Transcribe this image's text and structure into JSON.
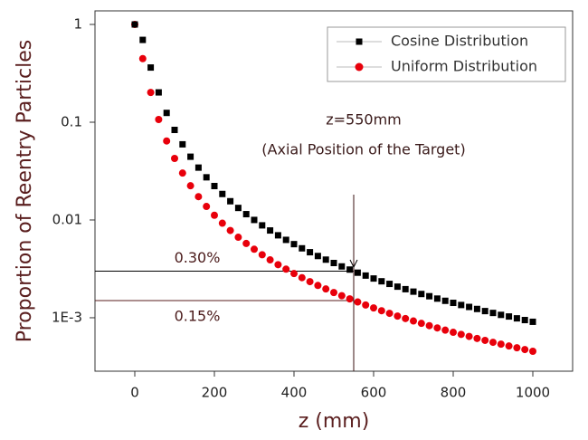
{
  "chart_data": {
    "type": "scatter",
    "x_label": "z (mm)",
    "y_label": "Proportion of Reentry Particles",
    "log_y": true,
    "legend": "upper right",
    "x": [
      0,
      20,
      40,
      60,
      80,
      100,
      120,
      140,
      160,
      180,
      200,
      220,
      240,
      260,
      280,
      300,
      320,
      340,
      360,
      380,
      400,
      420,
      440,
      460,
      480,
      500,
      520,
      540,
      560,
      580,
      600,
      620,
      640,
      660,
      680,
      700,
      720,
      740,
      760,
      780,
      800,
      820,
      840,
      860,
      880,
      900,
      920,
      940,
      960,
      980,
      1000
    ],
    "series": [
      {
        "name": "Cosine Distribution",
        "color": "#000000",
        "marker": "square",
        "values": [
          1,
          0.695,
          0.3625,
          0.2018,
          0.1245,
          0.0834,
          0.0594,
          0.04437,
          0.03433,
          0.02732,
          0.02224,
          0.01845,
          0.01555,
          0.01328,
          0.01147,
          0.01001,
          0.00881,
          0.00781,
          0.00697,
          0.00626,
          0.00566,
          0.00513,
          0.00468,
          0.00428,
          0.00393,
          0.00363,
          0.00335,
          0.00311,
          0.00289,
          0.0027,
          0.00252,
          0.00236,
          0.00222,
          0.00208,
          0.00196,
          0.00185,
          0.00175,
          0.00166,
          0.00157,
          0.00149,
          0.00142,
          0.00135,
          0.00129,
          0.00123,
          0.00117,
          0.00112,
          0.00107,
          0.00103,
          0.000986,
          0.000947,
          0.000909
        ]
      },
      {
        "name": "Uniform Distribution",
        "color": "#e8000b",
        "marker": "circle",
        "values": [
          1,
          0.447,
          0.2016,
          0.1066,
          0.0643,
          0.0426,
          0.0302,
          0.0224,
          0.01732,
          0.01375,
          0.01118,
          0.00927,
          0.00781,
          0.00666,
          0.00575,
          0.00502,
          0.00441,
          0.00391,
          0.00349,
          0.00314,
          0.00283,
          0.00257,
          0.00234,
          0.00214,
          0.00197,
          0.00181,
          0.00168,
          0.00156,
          0.00145,
          0.00135,
          0.00126,
          0.00118,
          0.00111,
          0.00104,
          0.000982,
          0.000927,
          0.000876,
          0.00083,
          0.000787,
          0.000747,
          0.00071,
          0.000676,
          0.000644,
          0.000614,
          0.000587,
          0.000561,
          0.000537,
          0.000514,
          0.000493,
          0.000473,
          0.000454
        ]
      }
    ],
    "xlim": [
      -100,
      1100
    ],
    "xticks": [
      0,
      200,
      400,
      600,
      800,
      1000
    ],
    "ylim": [
      0.000284,
      1.377
    ],
    "yticks": [
      1,
      0.1,
      0.01,
      {
        "value": 0.001,
        "label": "1E-3"
      }
    ],
    "target": {
      "x": 550,
      "label": "z=550mm",
      "sublabel": "(Axial Position of the Target)"
    },
    "annotations": [
      {
        "y": 0.003,
        "label": "0.30%"
      },
      {
        "y": 0.0015,
        "label": "0.15%"
      }
    ]
  }
}
